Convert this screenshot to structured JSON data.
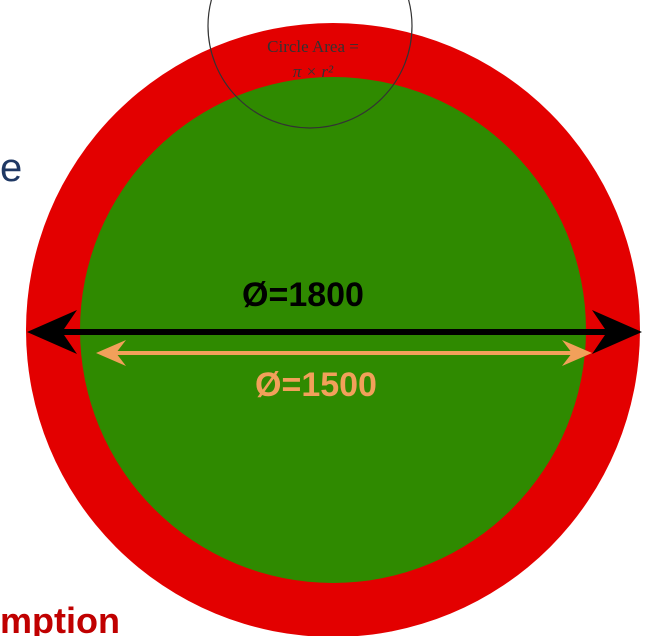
{
  "left_fragment": "e",
  "bottom_fragment": "mption",
  "formula": {
    "line1": "Circle Area =",
    "line2": "π × r²"
  },
  "outer_diameter_label": "Ø=1800",
  "inner_diameter_label": "Ø=1500",
  "colors": {
    "outer_ring": "#e30000",
    "inner_disc": "#2f8a00",
    "outer_arrow": "#000000",
    "inner_arrow": "#f2a05a",
    "inner_label": "#f2a05a",
    "left_text": "#1f3864",
    "bottom_text": "#c00000"
  }
}
